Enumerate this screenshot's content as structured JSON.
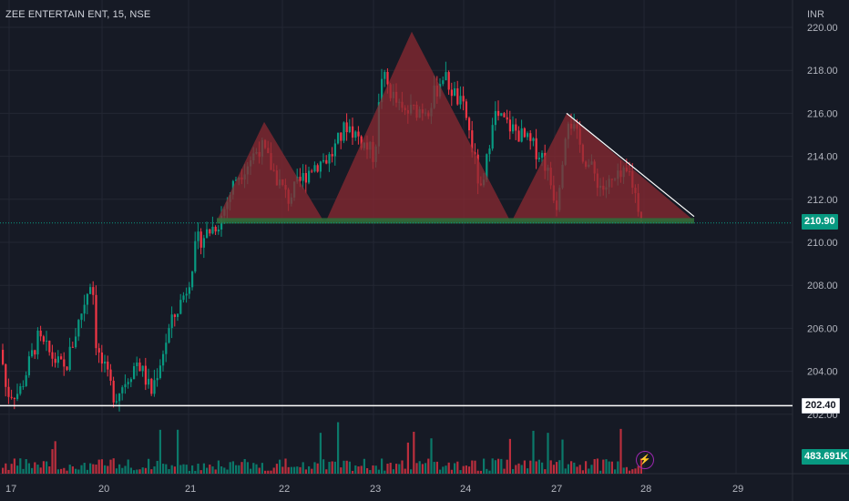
{
  "header": {
    "title": "ZEE ENTERTAIN ENT, 15, NSE",
    "currency": "INR"
  },
  "price_tags": {
    "last_price": "210.90",
    "level_price": "202.40",
    "volume": "483.691K"
  },
  "colors": {
    "background": "#161a25",
    "grid": "#232733",
    "up": "#089981",
    "down": "#f23645",
    "pattern_fill": "#8b2a32",
    "neckline": "#2f6b3a",
    "level_line": "#ffffff"
  },
  "chart_data": {
    "type": "candlestick",
    "title": "ZEE ENTERTAIN ENT, 15, NSE",
    "ylabel": "INR",
    "ylim": [
      201.8,
      220.2
    ],
    "y_ticks": [
      "220.00",
      "218.00",
      "216.00",
      "214.00",
      "212.00",
      "210.00",
      "208.00",
      "206.00",
      "204.00",
      "202.00"
    ],
    "x_ticks": [
      "17",
      "20",
      "21",
      "22",
      "23",
      "24",
      "27",
      "28",
      "29"
    ],
    "grid": true,
    "series_summary": {
      "start_close": 205.5,
      "low": 202.4,
      "high": 218.2,
      "last": 210.9,
      "volume_last": "483.691K"
    },
    "overlays": {
      "horizontal_level": 202.4,
      "neckline": 211.0,
      "last_price_line": 210.9,
      "pattern_peaks": [
        215.6,
        219.8,
        216.0
      ],
      "trendline": {
        "from": 216.0,
        "to": 211.2
      }
    }
  }
}
